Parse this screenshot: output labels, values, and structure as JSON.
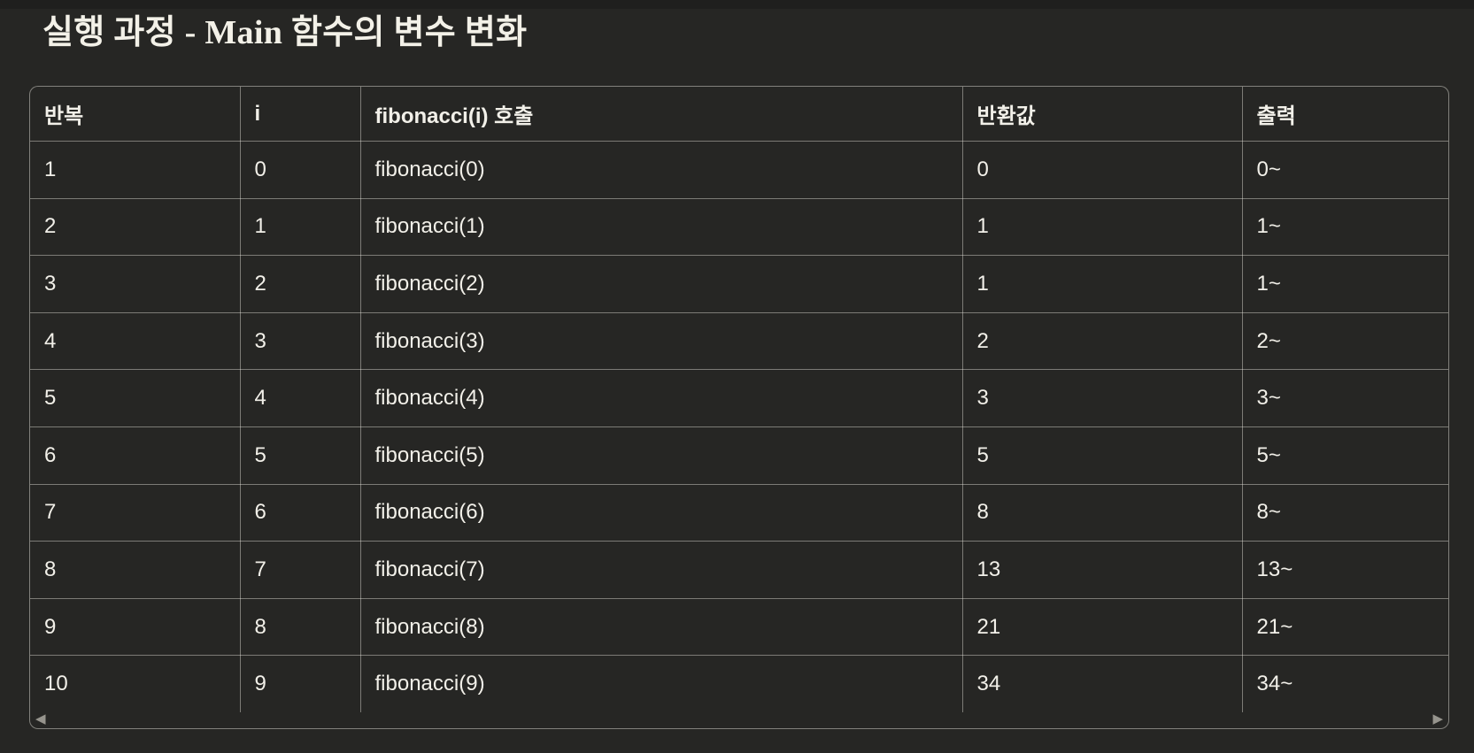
{
  "page": {
    "title": "실행 과정 - Main 함수의 변수 변화",
    "background_color": "#262624",
    "text_color": "#f2f0e9",
    "border_color": "rgba(243,241,233,0.42)"
  },
  "icons": {
    "scroll_left": "◀",
    "scroll_right": "▶"
  },
  "table": {
    "columns": [
      "반복",
      "i",
      "fibonacci(i) 호출",
      "반환값",
      "출력"
    ],
    "rows": [
      [
        "1",
        "0",
        "fibonacci(0)",
        "0",
        "0~"
      ],
      [
        "2",
        "1",
        "fibonacci(1)",
        "1",
        "1~"
      ],
      [
        "3",
        "2",
        "fibonacci(2)",
        "1",
        "1~"
      ],
      [
        "4",
        "3",
        "fibonacci(3)",
        "2",
        "2~"
      ],
      [
        "5",
        "4",
        "fibonacci(4)",
        "3",
        "3~"
      ],
      [
        "6",
        "5",
        "fibonacci(5)",
        "5",
        "5~"
      ],
      [
        "7",
        "6",
        "fibonacci(6)",
        "8",
        "8~"
      ],
      [
        "8",
        "7",
        "fibonacci(7)",
        "13",
        "13~"
      ],
      [
        "9",
        "8",
        "fibonacci(8)",
        "21",
        "21~"
      ],
      [
        "10",
        "9",
        "fibonacci(9)",
        "34",
        "34~"
      ]
    ]
  }
}
